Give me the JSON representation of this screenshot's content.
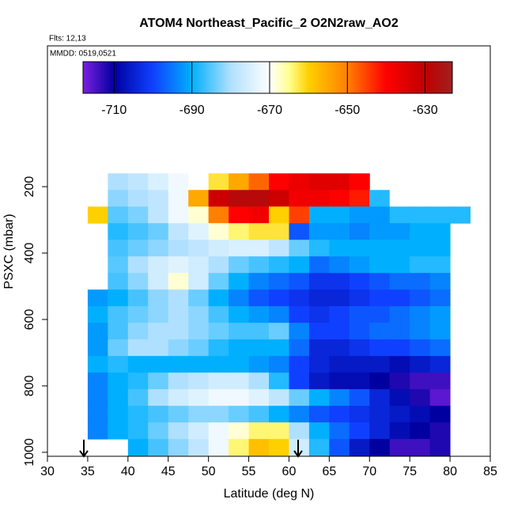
{
  "chart_data": {
    "type": "heatmap",
    "title": "ATOM4 Northeast_Pacific_2 O2N2raw_AO2",
    "annotations": [
      "Flts: 12,13",
      "MMDD: 0519,0521"
    ],
    "xlabel": "Latitude (deg N)",
    "ylabel": "PSXC (mbar)",
    "xlim": [
      30,
      85
    ],
    "xticks": [
      30,
      35,
      40,
      45,
      50,
      55,
      60,
      65,
      70,
      75,
      80,
      85
    ],
    "ylim": [
      1012,
      -224
    ],
    "yticks": [
      200,
      400,
      600,
      800,
      1000
    ],
    "x_bins": [
      35,
      37.5,
      40,
      42.5,
      45,
      47.5,
      50,
      52.5,
      55,
      57.5,
      60,
      62.5,
      65,
      67.5,
      70,
      72.5,
      75,
      77.5,
      80,
      82.5
    ],
    "y_bins": [
      160,
      210,
      260,
      310,
      360,
      410,
      460,
      510,
      560,
      610,
      660,
      710,
      760,
      810,
      860,
      910,
      960,
      1010
    ],
    "values": [
      [
        null,
        -680,
        -678,
        -675,
        -672,
        -670,
        -662,
        -655,
        -648,
        -640,
        -637,
        -635,
        -635,
        -640,
        null,
        null,
        null,
        null,
        null
      ],
      [
        null,
        -682,
        -680,
        -678,
        -672,
        -655,
        -632,
        -628,
        -628,
        -632,
        -638,
        -638,
        -640,
        -642,
        -688,
        -670,
        null,
        null,
        null
      ],
      [
        -660,
        -685,
        -683,
        -678,
        -672,
        -668,
        -650,
        -640,
        -638,
        -660,
        -645,
        -690,
        -690,
        -692,
        -692,
        -688,
        -688,
        -688,
        -688
      ],
      [
        null,
        -688,
        -686,
        -684,
        -678,
        -674,
        -668,
        -664,
        -662,
        -662,
        -698,
        -692,
        -692,
        -694,
        -692,
        -692,
        -690,
        -690,
        null
      ],
      [
        null,
        -686,
        -684,
        -682,
        -680,
        -678,
        -676,
        -675,
        -675,
        -678,
        -684,
        -688,
        -690,
        -690,
        -690,
        -690,
        -690,
        -690,
        null
      ],
      [
        null,
        -685,
        -680,
        -676,
        -674,
        -676,
        -680,
        -684,
        -686,
        -688,
        -690,
        -696,
        -694,
        -692,
        -690,
        -690,
        -688,
        -688,
        null
      ],
      [
        null,
        -686,
        -682,
        -676,
        -668,
        -676,
        -684,
        -690,
        -694,
        -696,
        -698,
        -702,
        -702,
        -700,
        -698,
        -696,
        -696,
        -694,
        null
      ],
      [
        -692,
        -690,
        -686,
        -682,
        -680,
        -684,
        -690,
        -694,
        -698,
        -700,
        -702,
        -704,
        -704,
        -702,
        -700,
        -700,
        -698,
        -696,
        null
      ],
      [
        -690,
        -686,
        -684,
        -682,
        -680,
        -682,
        -686,
        -690,
        -692,
        -694,
        -700,
        -702,
        -700,
        -698,
        -698,
        -696,
        -694,
        -692,
        null
      ],
      [
        -692,
        -686,
        -682,
        -680,
        -680,
        -682,
        -684,
        -686,
        -686,
        -684,
        -694,
        -700,
        -700,
        -698,
        -696,
        -696,
        -694,
        -692,
        null
      ],
      [
        -692,
        -684,
        -680,
        -680,
        -682,
        -684,
        -688,
        -690,
        -690,
        -690,
        -696,
        -704,
        -704,
        -702,
        -700,
        -700,
        -698,
        -696,
        null
      ],
      [
        -690,
        -688,
        -690,
        -690,
        -690,
        -690,
        -690,
        -690,
        -692,
        -694,
        -700,
        -704,
        -706,
        -706,
        -706,
        -708,
        -706,
        -704,
        null
      ],
      [
        -694,
        -690,
        -688,
        -684,
        -680,
        -678,
        -676,
        -676,
        -680,
        -688,
        -700,
        -706,
        -708,
        -708,
        -710,
        -712,
        -714,
        -714,
        null
      ],
      [
        -694,
        -690,
        -686,
        -680,
        -676,
        -674,
        -672,
        -672,
        -674,
        -678,
        -684,
        -690,
        -694,
        -698,
        -704,
        -708,
        -712,
        -716,
        null
      ],
      [
        -694,
        -690,
        -688,
        -686,
        -684,
        -682,
        -682,
        -684,
        -686,
        -690,
        -694,
        -698,
        -700,
        -702,
        -704,
        -706,
        -708,
        -710,
        null
      ],
      [
        -694,
        -690,
        -688,
        -684,
        -680,
        -676,
        -672,
        -668,
        -664,
        -664,
        -680,
        -690,
        -696,
        -700,
        -704,
        -708,
        -710,
        -712,
        null
      ],
      [
        null,
        null,
        -690,
        -686,
        -682,
        -678,
        -672,
        -664,
        -658,
        -660,
        -676,
        -688,
        -698,
        -706,
        -710,
        -714,
        -714,
        -712,
        null
      ]
    ],
    "colorbar_lim": [
      -718,
      -623
    ],
    "colorbar_ticks": [
      -710,
      -690,
      -670,
      -650,
      -630
    ],
    "colorscale": [
      [
        -718,
        "#7b1fe0"
      ],
      [
        -710,
        "#0000a0"
      ],
      [
        -700,
        "#1040ff"
      ],
      [
        -690,
        "#00b0ff"
      ],
      [
        -680,
        "#b0e0ff"
      ],
      [
        -670,
        "#ffffff"
      ],
      [
        -665,
        "#ffff90"
      ],
      [
        -660,
        "#ffd000"
      ],
      [
        -650,
        "#ff8000"
      ],
      [
        -640,
        "#ff0000"
      ],
      [
        -630,
        "#c00000"
      ],
      [
        -623,
        "#a02020"
      ]
    ]
  }
}
